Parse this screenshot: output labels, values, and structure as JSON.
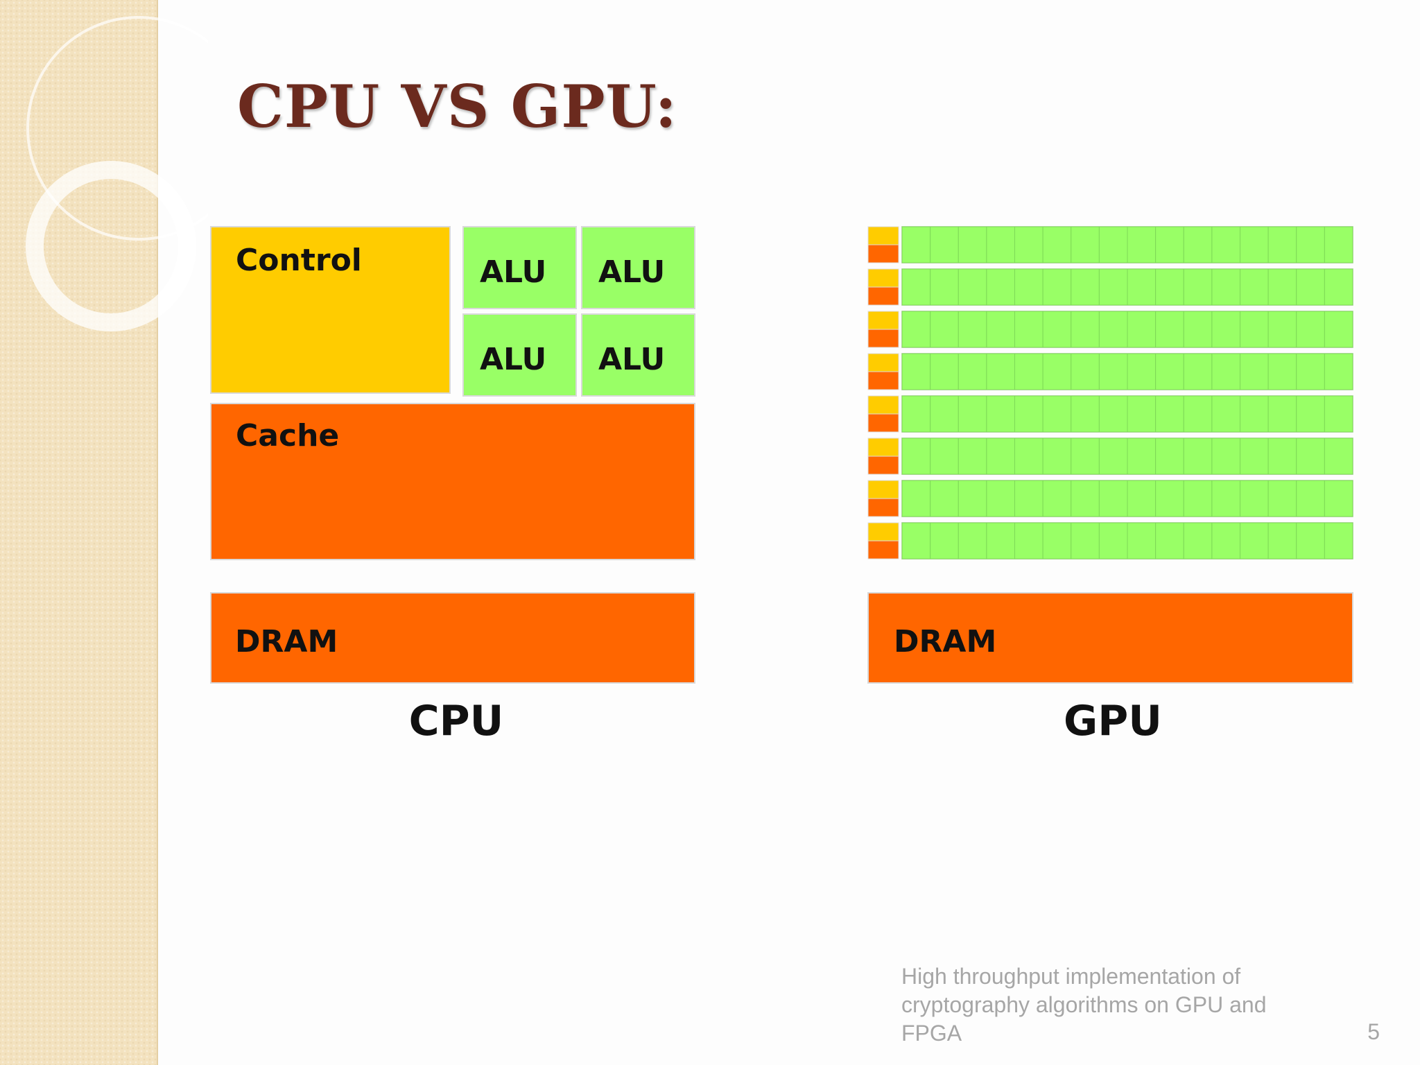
{
  "slide": {
    "title": "CPU VS GPU:",
    "footer": "High throughput implementation of cryptography algorithms on GPU and FPGA",
    "page_number": "5"
  },
  "cpu": {
    "control_label": "Control",
    "alu_labels": [
      "ALU",
      "ALU",
      "ALU",
      "ALU"
    ],
    "cache_label": "Cache",
    "dram_label": "DRAM",
    "caption": "CPU"
  },
  "gpu": {
    "rows": 8,
    "cores_per_row": 16,
    "dram_label": "DRAM",
    "caption": "GPU"
  },
  "colors": {
    "title": "#6b2a1e",
    "control": "#ffcc00",
    "alu": "#99ff66",
    "cache": "#ff6600",
    "dram": "#ff6600",
    "gpu_core": "#99ff66",
    "gpu_control": "#ffcc00",
    "gpu_cache": "#ff6600",
    "side_strip": "#f3e2bf",
    "footer_text": "#a6a6a6"
  }
}
